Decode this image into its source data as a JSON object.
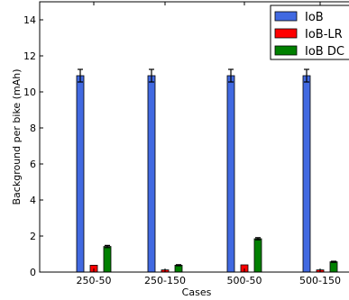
{
  "chart_data": {
    "type": "bar",
    "categories": [
      "250-50",
      "250-150",
      "500-50",
      "500-150"
    ],
    "series": [
      {
        "name": "IoB",
        "values": [
          10.9,
          10.9,
          10.9,
          10.9
        ],
        "errors": [
          0.35,
          0.35,
          0.35,
          0.35
        ],
        "color": "#4169e1"
      },
      {
        "name": "IoB-LR",
        "values": [
          0.38,
          0.12,
          0.4,
          0.12
        ],
        "errors": [
          0.0,
          0.0,
          0.0,
          0.0
        ],
        "color": "#ff0000"
      },
      {
        "name": "IoB DC",
        "values": [
          1.42,
          0.38,
          1.85,
          0.57
        ],
        "errors": [
          0.06,
          0.03,
          0.06,
          0.03
        ],
        "color": "#008000"
      }
    ],
    "xlabel": "Cases",
    "ylabel": "Background per bike (mAh)",
    "ylim": [
      0,
      15
    ],
    "yticks": [
      0,
      2,
      4,
      6,
      8,
      10,
      12,
      14
    ],
    "grid": false,
    "legend_position": "top-right"
  }
}
